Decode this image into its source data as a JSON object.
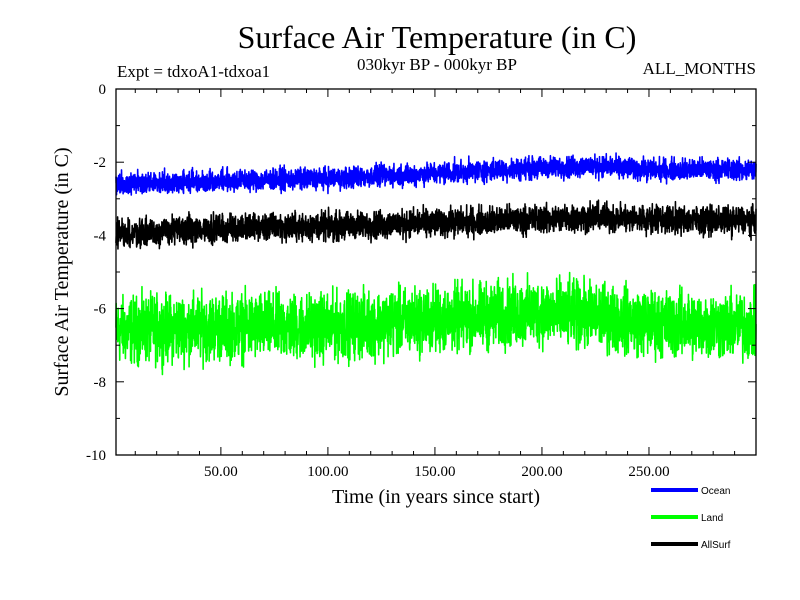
{
  "chart_data": {
    "type": "line",
    "title": "Surface Air Temperature (in C)",
    "subtitle": "030kyr BP - 000kyr BP",
    "left_label": "Expt = tdxoA1-tdxoa1",
    "right_label": "ALL_MONTHS",
    "xlabel": "Time (in years since start)",
    "ylabel": "Surface Air Temperature (in C)",
    "xlim": [
      1,
      300
    ],
    "ylim": [
      -10,
      0
    ],
    "x_ticks": [
      {
        "value": 50,
        "label": "50.00"
      },
      {
        "value": 100,
        "label": "100.00"
      },
      {
        "value": 150,
        "label": "150.00"
      },
      {
        "value": 200,
        "label": "200.00"
      },
      {
        "value": 250,
        "label": "250.00"
      }
    ],
    "y_ticks": [
      {
        "value": 0,
        "label": "0"
      },
      {
        "value": -2,
        "label": "-2"
      },
      {
        "value": -4,
        "label": "-4"
      },
      {
        "value": -6,
        "label": "-6"
      },
      {
        "value": -8,
        "label": "-8"
      },
      {
        "value": -10,
        "label": "-10"
      }
    ],
    "legend_position": "bottom-right",
    "series": [
      {
        "name": "Ocean",
        "color": "#0000ff",
        "trend_x": [
          1,
          50,
          100,
          150,
          200,
          225,
          250,
          300
        ],
        "trend_y": [
          -2.6,
          -2.5,
          -2.45,
          -2.3,
          -2.15,
          -2.1,
          -2.2,
          -2.2
        ],
        "spread": 0.35
      },
      {
        "name": "Land",
        "color": "#00ff00",
        "trend_x": [
          1,
          50,
          100,
          150,
          200,
          225,
          250,
          300
        ],
        "trend_y": [
          -6.6,
          -6.5,
          -6.5,
          -6.3,
          -6.1,
          -6.2,
          -6.4,
          -6.5
        ],
        "spread": 1.05
      },
      {
        "name": "AllSurf",
        "color": "#000000",
        "trend_x": [
          1,
          50,
          100,
          150,
          200,
          225,
          250,
          300
        ],
        "trend_y": [
          -3.95,
          -3.8,
          -3.75,
          -3.65,
          -3.55,
          -3.5,
          -3.55,
          -3.6
        ],
        "spread": 0.45
      }
    ]
  }
}
